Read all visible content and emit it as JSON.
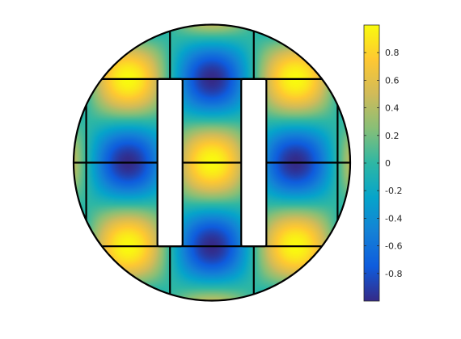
{
  "chart_data": {
    "type": "heatmap",
    "title": "",
    "xlabel": "",
    "ylabel": "",
    "domain_shape": "circle with two rectangular holes",
    "field": "cos(pi*x)*cos(pi*y) pattern",
    "value_range": [
      -1,
      1
    ],
    "colormap": "parula",
    "colorbar": {
      "position": "right",
      "ticks": [
        0.8,
        0.6,
        0.4,
        0.2,
        0,
        -0.2,
        -0.4,
        -0.6,
        -0.8
      ],
      "tick_labels": [
        "0.8",
        "0.6",
        "0.4",
        "0.2",
        "0",
        "-0.2",
        "-0.4",
        "-0.6",
        "-0.8"
      ]
    },
    "mesh_lines": {
      "vertical_x": [
        -1.5,
        -0.5,
        0.5,
        1.5
      ],
      "horizontal_y": [
        1.0,
        0.0,
        -1.0
      ]
    },
    "holes": [
      {
        "x": [
          -0.65,
          -0.35
        ],
        "y": [
          -1.0,
          1.0
        ]
      },
      {
        "x": [
          0.35,
          0.65
        ],
        "y": [
          -1.0,
          1.0
        ]
      }
    ],
    "domain_radius": 1.65,
    "grid": false
  }
}
